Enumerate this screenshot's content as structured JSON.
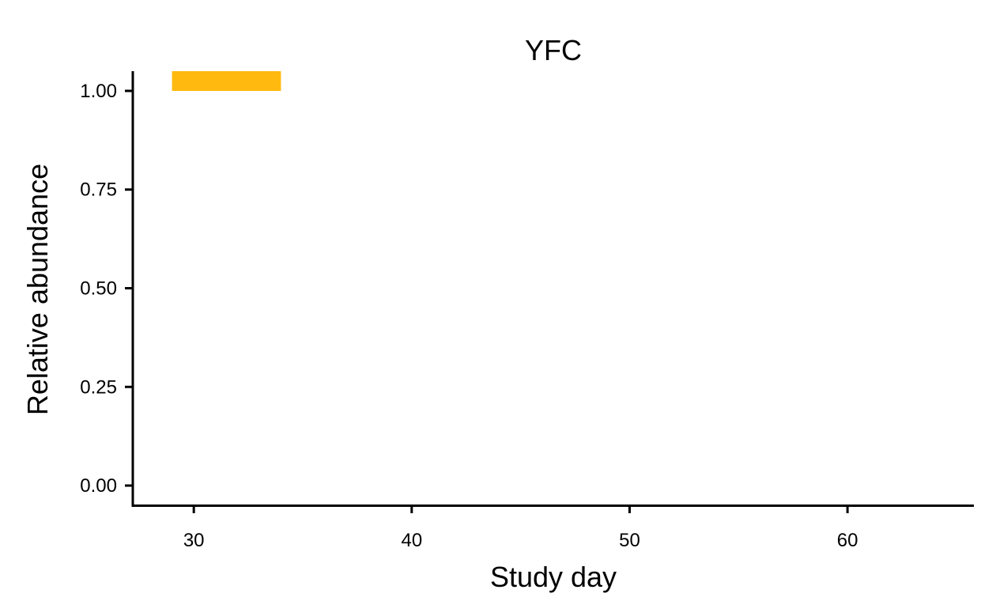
{
  "chart_data": {
    "type": "area",
    "title": "YFC",
    "xlabel": "Study day",
    "ylabel": "Relative abundance",
    "xlim": [
      27.2,
      65.8
    ],
    "ylim": [
      -0.05,
      1.05
    ],
    "x_ticks": [
      30,
      40,
      50,
      60
    ],
    "x_tick_labels": [
      "30",
      "40",
      "50",
      "60"
    ],
    "y_ticks": [
      0,
      0.25,
      0.5,
      0.75,
      1
    ],
    "y_tick_labels": [
      "0.00",
      "0.25",
      "0.50",
      "0.75",
      "1.00"
    ],
    "grid": false,
    "legend": "none",
    "series": [
      {
        "color": "#FFB90F",
        "x": [
          29,
          34
        ],
        "y_lower": [
          1.0,
          1.0
        ],
        "y_upper": [
          1.05,
          1.05
        ]
      }
    ]
  }
}
